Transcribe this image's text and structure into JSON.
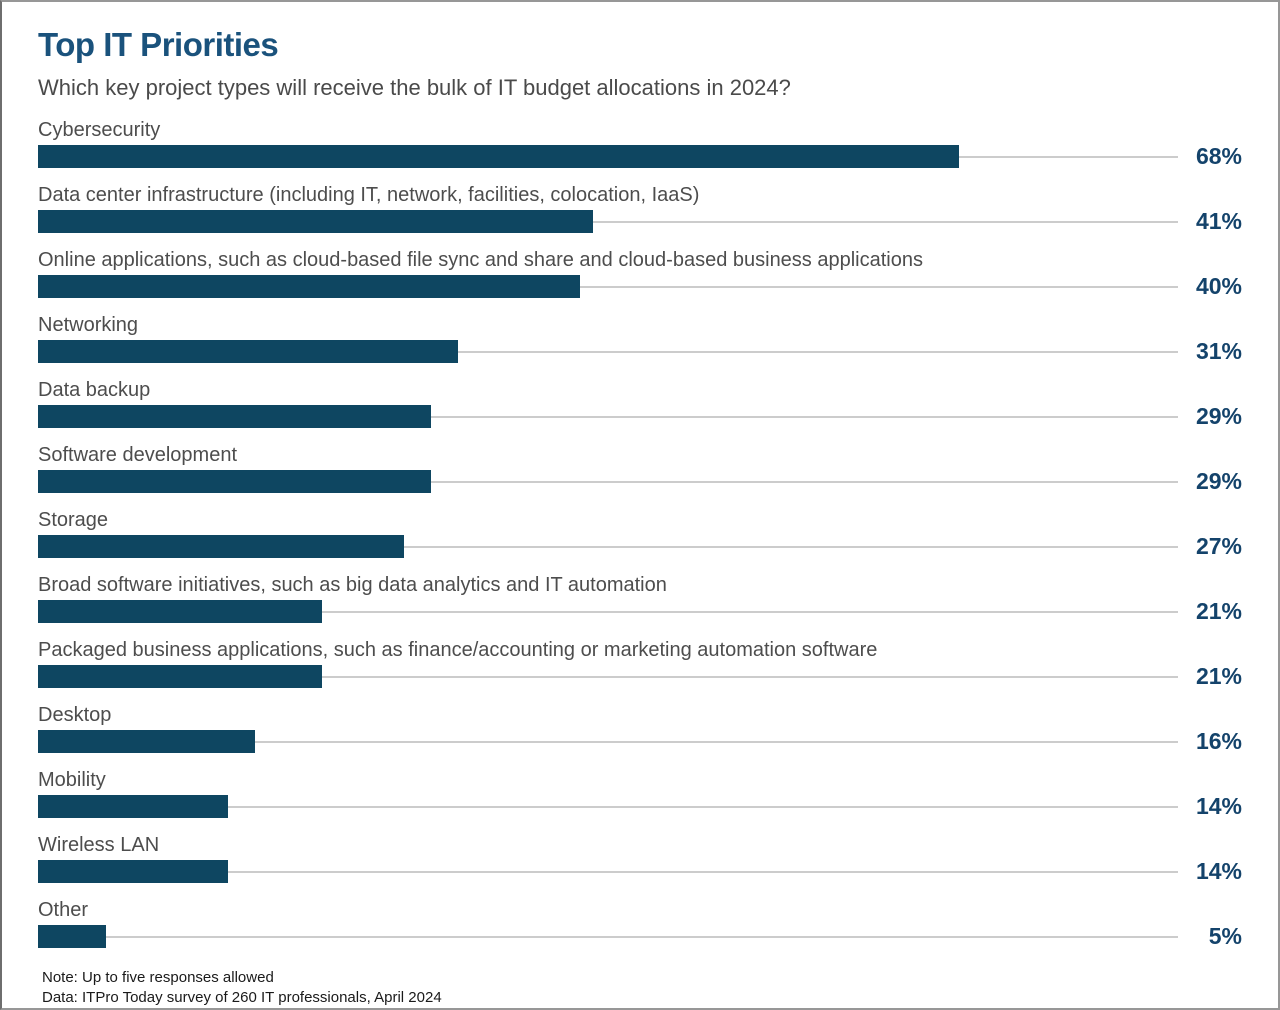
{
  "chart_data": {
    "type": "bar",
    "orientation": "horizontal",
    "title": "Top IT Priorities",
    "subtitle": "Which key project types will receive the bulk of IT budget allocations in 2024?",
    "categories": [
      "Cybersecurity",
      "Data center infrastructure (including IT, network, facilities, colocation, IaaS)",
      "Online applications, such as cloud-based file sync and share and cloud-based business applications",
      "Networking",
      "Data backup",
      "Software development",
      "Storage",
      "Broad software initiatives, such as big data analytics and IT automation",
      "Packaged business applications, such as finance/accounting or marketing automation software",
      "Desktop",
      "Mobility",
      "Wireless LAN",
      "Other"
    ],
    "values": [
      68,
      41,
      40,
      31,
      29,
      29,
      27,
      21,
      21,
      16,
      14,
      14,
      5
    ],
    "value_suffix": "%",
    "xlim": [
      0,
      84.2
    ],
    "grid": false,
    "legend": "none",
    "bar_color": "#0e4661",
    "value_label_color": "#14436b",
    "connector_color": "#cccccc",
    "title_color": "#1a527c",
    "notes": [
      "Note: Up to five responses allowed",
      "Data: ITPro Today survey of 260 IT professionals, April 2024"
    ]
  }
}
